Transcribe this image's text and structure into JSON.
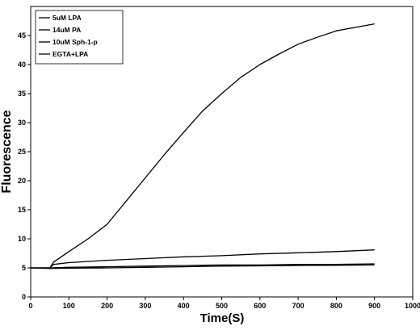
{
  "chart_data": {
    "type": "line",
    "title": "",
    "xlabel": "Time(S)",
    "ylabel": "Fluorescence",
    "xlim": [
      0,
      1000
    ],
    "ylim": [
      0,
      50
    ],
    "xticks": [
      0,
      100,
      200,
      300,
      400,
      500,
      600,
      700,
      800,
      900,
      1000
    ],
    "yticks": [
      0,
      5,
      10,
      15,
      20,
      25,
      30,
      35,
      40,
      45
    ],
    "grid": false,
    "legend_position": "top-left",
    "series": [
      {
        "name": "5uM LPA",
        "x": [
          0,
          50,
          60,
          100,
          150,
          200,
          250,
          300,
          350,
          400,
          450,
          500,
          550,
          600,
          650,
          700,
          750,
          800,
          850,
          900
        ],
        "y": [
          5.0,
          5.0,
          6.0,
          7.8,
          10.0,
          12.5,
          16.5,
          20.5,
          24.5,
          28.3,
          32.0,
          35.0,
          37.8,
          40.0,
          41.8,
          43.5,
          44.7,
          45.8,
          46.4,
          47.0
        ]
      },
      {
        "name": "14uM PA",
        "x": [
          0,
          50,
          60,
          100,
          200,
          300,
          400,
          500,
          600,
          700,
          800,
          900
        ],
        "y": [
          5.0,
          5.0,
          5.6,
          5.9,
          6.3,
          6.6,
          6.9,
          7.1,
          7.4,
          7.6,
          7.8,
          8.1
        ]
      },
      {
        "name": "10uM Sph-1-p",
        "x": [
          0,
          50,
          100,
          200,
          300,
          400,
          500,
          600,
          700,
          800,
          900
        ],
        "y": [
          5.0,
          5.0,
          5.1,
          5.2,
          5.3,
          5.4,
          5.5,
          5.5,
          5.6,
          5.6,
          5.7
        ]
      },
      {
        "name": "EGTA+LPA",
        "x": [
          0,
          50,
          100,
          200,
          300,
          400,
          500,
          600,
          700,
          800,
          900
        ],
        "y": [
          5.0,
          4.9,
          4.95,
          5.0,
          5.1,
          5.2,
          5.3,
          5.35,
          5.4,
          5.45,
          5.5
        ]
      }
    ]
  }
}
